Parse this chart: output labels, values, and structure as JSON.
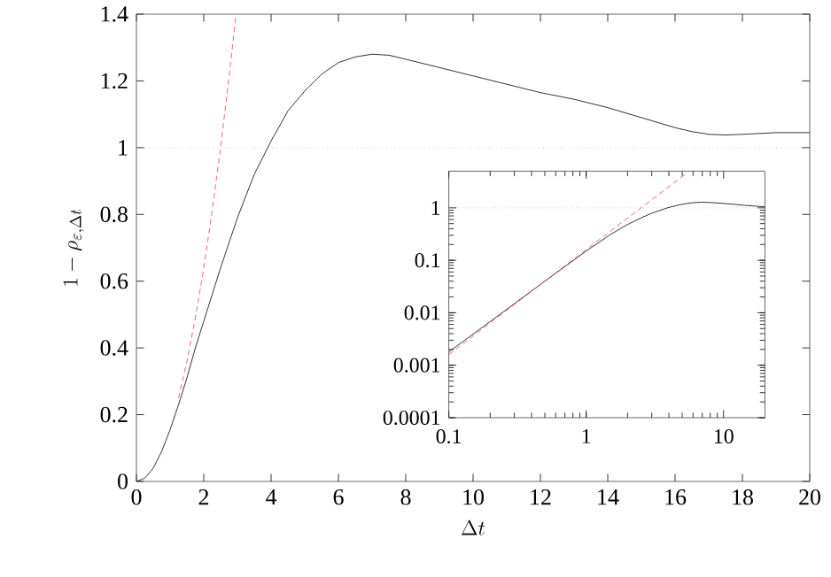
{
  "chart_data": [
    {
      "type": "line",
      "xlabel": "\\Delta t",
      "ylabel": "1-\\rho_{\\varepsilon,\\Delta t}",
      "xlim": [
        0,
        20
      ],
      "ylim": [
        0,
        1.4
      ],
      "xticks": [
        0,
        2,
        4,
        6,
        8,
        10,
        12,
        14,
        16,
        18,
        20
      ],
      "yticks": [
        0,
        0.2,
        0.4,
        0.6,
        0.8,
        1,
        1.2,
        1.4
      ],
      "grid": false,
      "series": [
        {
          "color": "#000000",
          "line_style": "solid",
          "x": [
            0,
            0.25,
            0.5,
            0.75,
            1,
            1.25,
            1.5,
            1.75,
            2,
            2.5,
            3,
            3.5,
            4,
            4.5,
            5,
            5.5,
            6,
            6.5,
            7,
            7.5,
            8,
            9,
            10,
            11,
            12,
            13,
            14,
            15,
            15.5,
            16,
            16.5,
            17,
            17.5,
            18,
            19,
            20
          ],
          "values": [
            0,
            0.01,
            0.04,
            0.09,
            0.155,
            0.23,
            0.31,
            0.4,
            0.48,
            0.64,
            0.79,
            0.92,
            1.02,
            1.11,
            1.17,
            1.22,
            1.255,
            1.272,
            1.28,
            1.277,
            1.265,
            1.24,
            1.215,
            1.19,
            1.165,
            1.145,
            1.12,
            1.09,
            1.075,
            1.06,
            1.048,
            1.04,
            1.038,
            1.04,
            1.045,
            1.045
          ]
        },
        {
          "color": "#ff4040",
          "line_style": "dashed",
          "x": [
            1.25,
            1.5,
            1.75,
            2,
            2.25,
            2.5,
            2.75,
            2.96
          ],
          "values": [
            0.25,
            0.36,
            0.49,
            0.64,
            0.81,
            1.0,
            1.21,
            1.4
          ]
        }
      ],
      "ref_lines": [
        {
          "axis": "y",
          "value": 1,
          "color": "#ff8080",
          "line_style": "dotted"
        }
      ]
    },
    {
      "type": "line",
      "log": "xy",
      "xlim": [
        0.1,
        20
      ],
      "ylim": [
        0.0001,
        5
      ],
      "xticks": [
        0.1,
        1,
        10
      ],
      "yticks": [
        0.0001,
        0.001,
        0.01,
        0.1,
        1
      ],
      "grid": false,
      "series": [
        {
          "color": "#000000",
          "line_style": "solid",
          "x": [
            0.1,
            0.2,
            0.5,
            1,
            1.5,
            2,
            2.5,
            3,
            4,
            5,
            6,
            7,
            8,
            10,
            14,
            20
          ],
          "values": [
            0.0018,
            0.0068,
            0.04,
            0.15,
            0.31,
            0.48,
            0.64,
            0.79,
            1.02,
            1.17,
            1.255,
            1.28,
            1.265,
            1.215,
            1.12,
            1.045
          ]
        },
        {
          "color": "#ff4040",
          "line_style": "dashed",
          "x": [
            0.1,
            1,
            5.4
          ],
          "values": [
            0.0016,
            0.16,
            4.6
          ]
        }
      ],
      "ref_lines": [
        {
          "axis": "y",
          "value": 1,
          "color": "#ff8080",
          "line_style": "dotted"
        }
      ]
    }
  ]
}
